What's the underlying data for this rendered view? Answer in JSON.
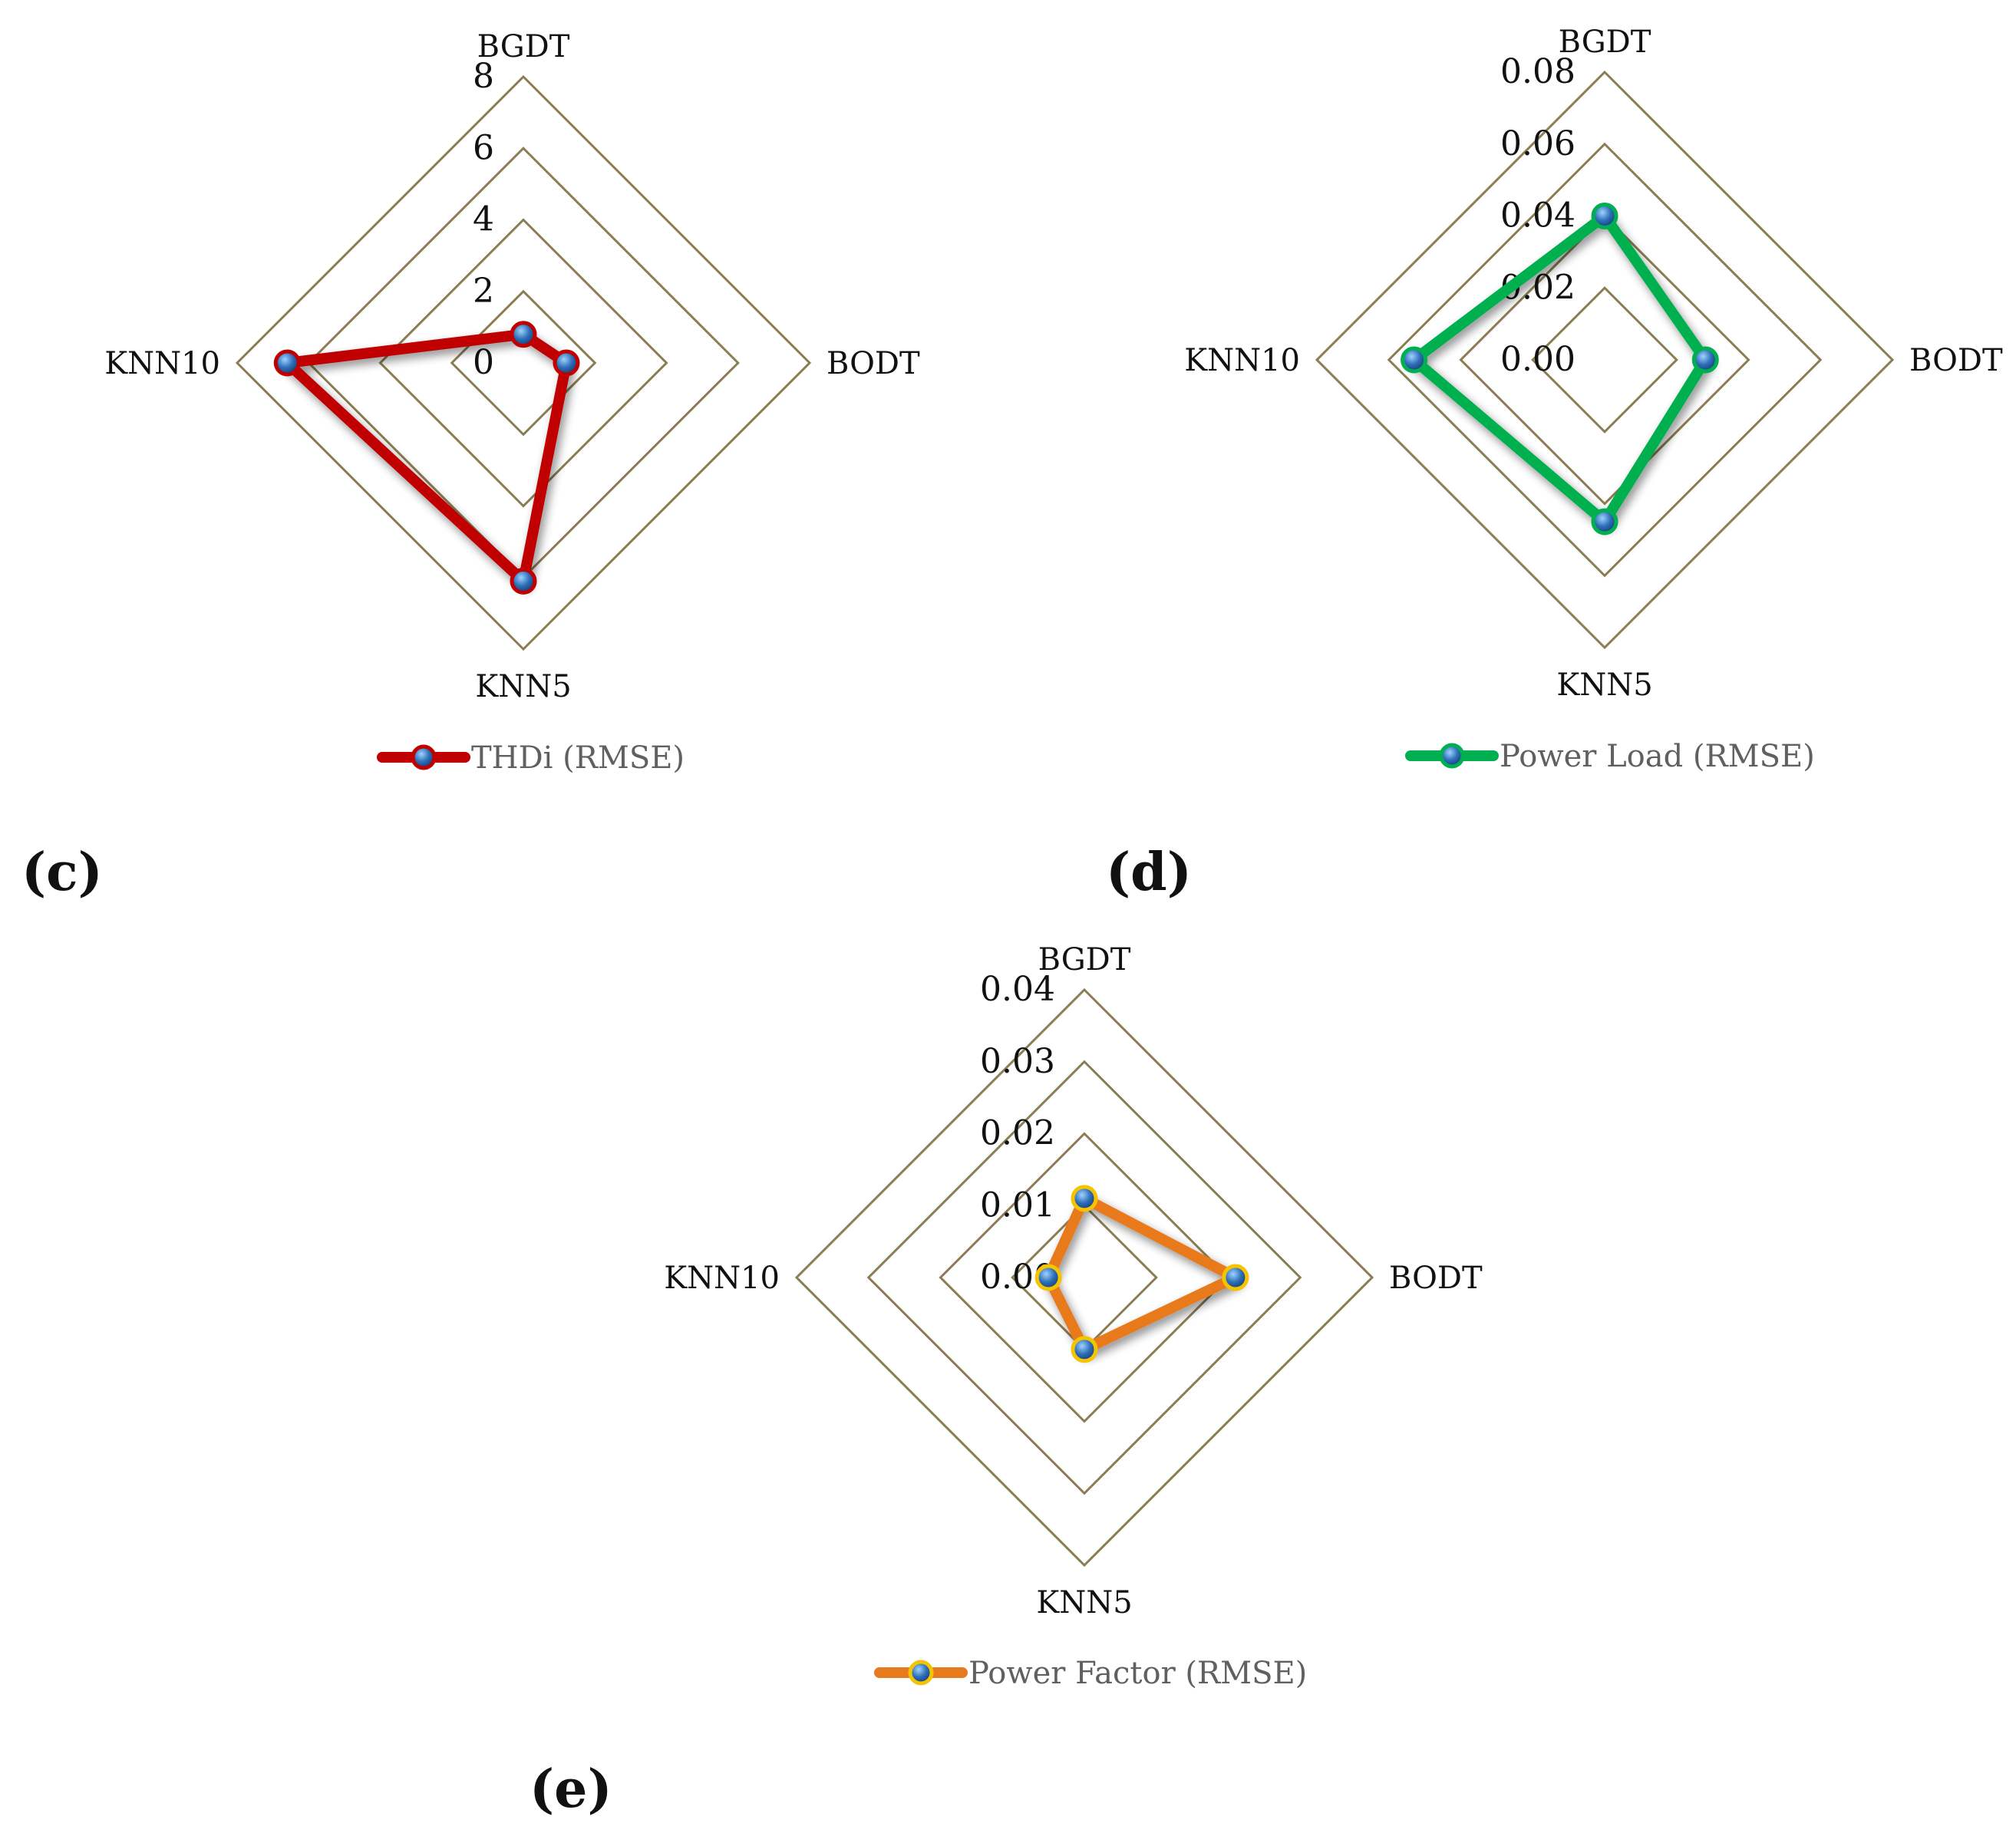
{
  "grid_color": "#8b7d52",
  "marker_fill": "#2e6fb8",
  "chart_data": [
    {
      "type": "radar",
      "panel_label": "(c)",
      "axes": [
        "BGDT",
        "BODT",
        "KNN5",
        "KNN10"
      ],
      "ticks": [
        "0",
        "2",
        "4",
        "6",
        "8"
      ],
      "range": [
        0,
        8
      ],
      "series": [
        {
          "name": "THDi (RMSE)",
          "values": [
            0.8,
            1.2,
            6.1,
            6.6
          ],
          "color": "#c00000",
          "marker_ring": "#c00000"
        }
      ],
      "legend_position": "bottom"
    },
    {
      "type": "radar",
      "panel_label": "(d)",
      "axes": [
        "BGDT",
        "BODT",
        "KNN5",
        "KNN10"
      ],
      "ticks": [
        "0.00",
        "0.02",
        "0.04",
        "0.06",
        "0.08"
      ],
      "range": [
        0,
        0.08
      ],
      "series": [
        {
          "name": "Power Load  (RMSE)",
          "values": [
            0.04,
            0.028,
            0.045,
            0.053
          ],
          "color": "#00b050",
          "marker_ring": "#00b050"
        }
      ],
      "legend_position": "bottom"
    },
    {
      "type": "radar",
      "panel_label": "(e)",
      "axes": [
        "BGDT",
        "BODT",
        "KNN5",
        "KNN10"
      ],
      "ticks": [
        "0.00",
        "0.01",
        "0.02",
        "0.03",
        "0.04"
      ],
      "range": [
        0,
        0.04
      ],
      "series": [
        {
          "name": "Power Factor (RMSE)",
          "values": [
            0.011,
            0.021,
            0.01,
            0.005
          ],
          "color": "#e87a1e",
          "marker_ring": "#f5c400"
        }
      ],
      "legend_position": "bottom"
    }
  ]
}
